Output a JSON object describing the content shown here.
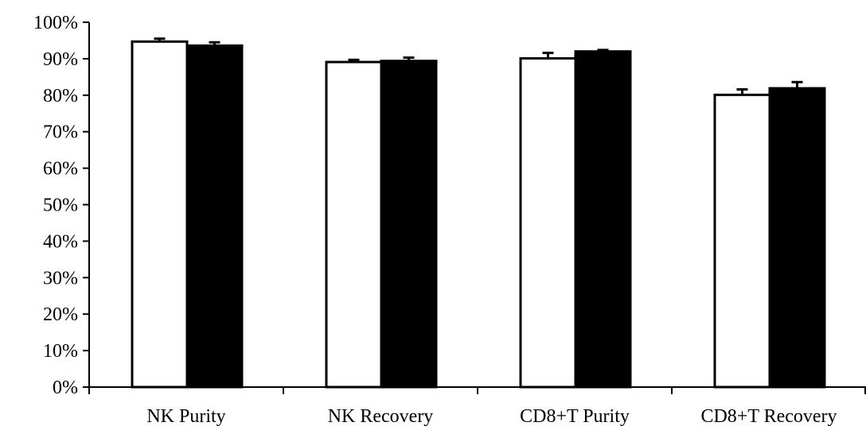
{
  "chart_data": {
    "type": "bar",
    "categories": [
      "NK Purity",
      "NK Recovery",
      "CD8+T Purity",
      "CD8+T Recovery"
    ],
    "series": [
      {
        "color": "#ffffff",
        "values": [
          0.947,
          0.891,
          0.901,
          0.801
        ],
        "errors": [
          0.008,
          0.006,
          0.015,
          0.015
        ]
      },
      {
        "color": "#000000",
        "values": [
          0.936,
          0.894,
          0.92,
          0.819
        ],
        "errors": [
          0.009,
          0.009,
          0.004,
          0.017
        ]
      }
    ],
    "ylim": [
      0,
      1
    ],
    "yticks": [
      "0%",
      "10%",
      "20%",
      "30%",
      "40%",
      "50%",
      "60%",
      "70%",
      "80%",
      "90%",
      "100%"
    ],
    "title": "",
    "xlabel": "",
    "ylabel": "",
    "grid": false,
    "legend": "none"
  }
}
